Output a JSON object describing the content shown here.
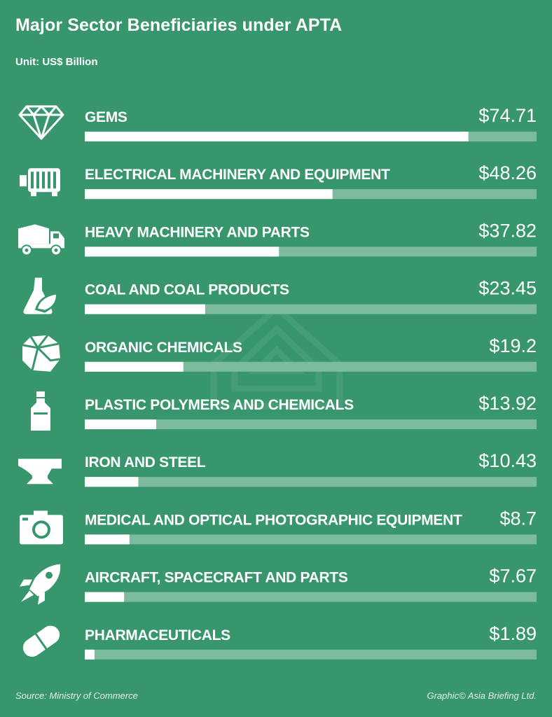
{
  "header": {
    "title": "Major Sector Beneficiaries under APTA",
    "unit": "Unit: US$ Billion"
  },
  "footer": {
    "source": "Source: Ministry of Commerce",
    "credit": "Graphic© Asia Briefing Ltd."
  },
  "colors": {
    "background": "#37966c",
    "bar_fill": "#ffffff",
    "bar_track": "#7dbb9e"
  },
  "chart_data": {
    "type": "bar",
    "orientation": "horizontal",
    "title": "Major Sector Beneficiaries under APTA",
    "unit": "Unit: US$ Billion",
    "xlim": [
      0,
      88
    ],
    "categories": [
      "GEMS",
      "ELECTRICAL MACHINERY AND EQUIPMENT",
      "HEAVY MACHINERY AND PARTS",
      "COAL AND COAL PRODUCTS",
      "ORGANIC CHEMICALS",
      "PLASTIC POLYMERS AND CHEMICALS",
      "IRON AND STEEL",
      "MEDICAL AND OPTICAL PHOTOGRAPHIC EQUIPMENT",
      "AIRCRAFT, SPACECRAFT AND PARTS",
      "PHARMACEUTICALS"
    ],
    "values": [
      74.71,
      48.26,
      37.82,
      23.45,
      19.2,
      13.92,
      10.43,
      8.7,
      7.67,
      1.89
    ],
    "value_labels": [
      "$74.71",
      "$48.26",
      "$37.82",
      "$23.45",
      "$19.2",
      "$13.92",
      "$10.43",
      "$8.7",
      "$7.67",
      "$1.89"
    ],
    "icons": [
      "diamond-icon",
      "electric-motor-icon",
      "dump-truck-icon",
      "coal-flask-icon",
      "chemical-rock-icon",
      "bottle-icon",
      "anvil-icon",
      "camera-icon",
      "rocket-icon",
      "pill-icon"
    ]
  }
}
